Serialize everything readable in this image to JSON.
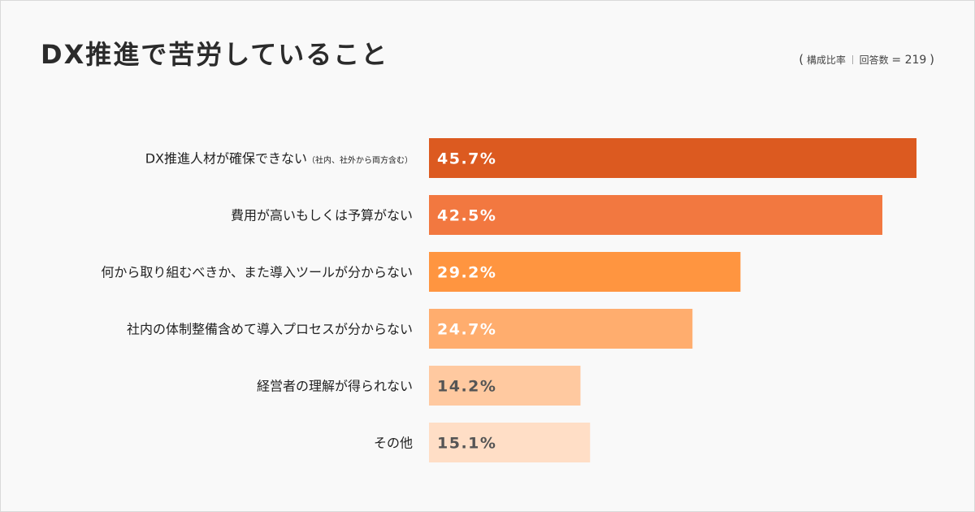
{
  "header": {
    "title": "DX推進で苦労していること",
    "meta_open": "(",
    "meta_ratio": "構成比率",
    "meta_respondents": "回答数",
    "meta_n": "= 219",
    "meta_close": ")"
  },
  "chart_data": {
    "type": "bar",
    "orientation": "horizontal",
    "title": "DX推進で苦労していること",
    "unit": "%",
    "categories": [
      "DX推進人材が確保できない",
      "費用が高いもしくは予算がない",
      "何から取り組むべきか、また導入ツールが分からない",
      "社内の体制整備含めて導入プロセスが分からない",
      "経営者の理解が得られない",
      "その他"
    ],
    "category_notes": [
      "（社内、社外から両方含む）",
      "",
      "",
      "",
      "",
      ""
    ],
    "values": [
      45.7,
      42.5,
      29.2,
      24.7,
      14.2,
      15.1
    ],
    "value_labels": [
      "45.7%",
      "42.5%",
      "29.2%",
      "24.7%",
      "14.2%",
      "15.1%"
    ],
    "bar_colors": [
      "#dc5a20",
      "#f27840",
      "#ff9540",
      "#ffad6e",
      "#ffc9a0",
      "#ffdec6"
    ],
    "value_label_colors": [
      "#ffffff",
      "#ffffff",
      "#ffffff",
      "#ffffff",
      "#555555",
      "#555555"
    ],
    "xlim": [
      0,
      45.7
    ],
    "grid": false,
    "legend": "none"
  }
}
